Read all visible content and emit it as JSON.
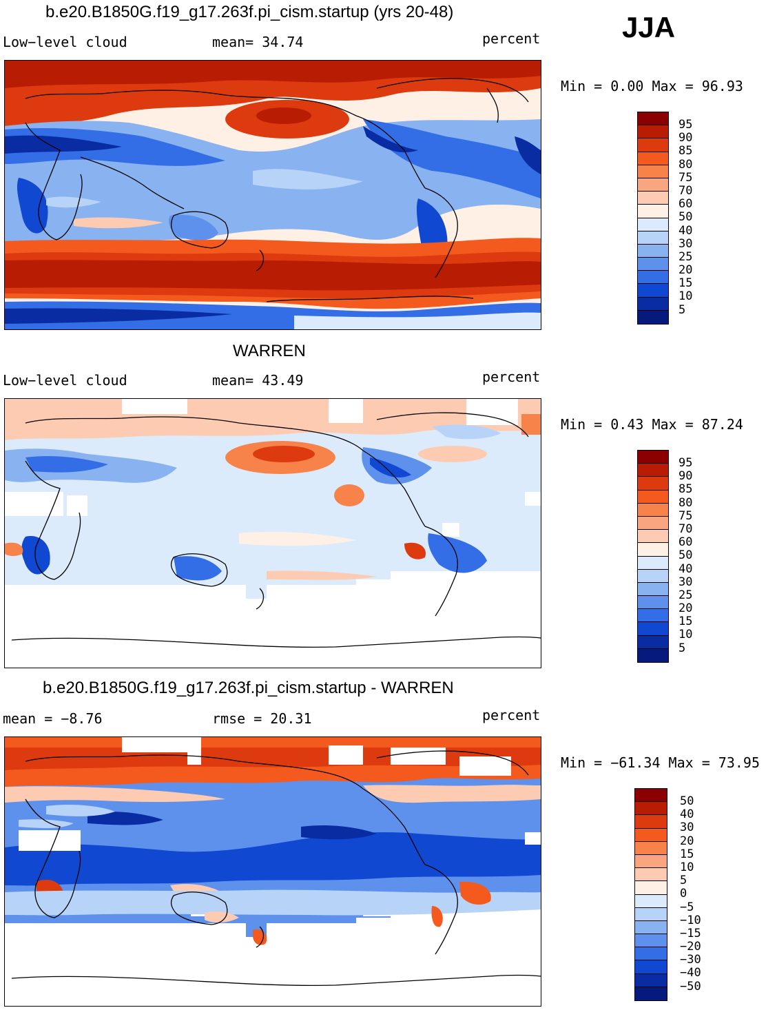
{
  "season": "JJA",
  "panels": [
    {
      "title": "b.e20.B1850G.f19_g17.263f.pi_cism.startup (yrs 20-48)",
      "left_label": "Low−level cloud",
      "mid_label": "mean=  34.74",
      "right_label": "percent",
      "minmax": "Min =    0.00 Max =   96.93"
    },
    {
      "title": "WARREN",
      "left_label": "Low−level cloud",
      "mid_label": "mean=  43.49",
      "right_label": "percent",
      "minmax": "Min =    0.43 Max =   87.24"
    },
    {
      "title": "b.e20.B1850G.f19_g17.263f.pi_cism.startup - WARREN",
      "left_label": "mean =   −8.76",
      "mid_label": "rmse =   20.31",
      "right_label": "percent",
      "minmax": "Min = −61.34 Max =   73.95"
    }
  ],
  "chart_data": [
    {
      "type": "heatmap",
      "title": "b.e20.B1850G.f19_g17.263f.pi_cism.startup (yrs 20-48)",
      "variable": "Low-level cloud",
      "units": "percent",
      "mean": 34.74,
      "min": 0.0,
      "max": 96.93,
      "colorbar_levels": [
        "95",
        "90",
        "85",
        "80",
        "75",
        "70",
        "60",
        "50",
        "40",
        "30",
        "25",
        "20",
        "15",
        "10",
        "5"
      ],
      "colorbar_colors": [
        "#8b0000",
        "#b81d04",
        "#dd3a0f",
        "#f45a1e",
        "#f7834a",
        "#f9a57f",
        "#fdcbb1",
        "#fff0e6",
        "#dcebfc",
        "#b7d3f7",
        "#88b2f0",
        "#5d91ec",
        "#346ee6",
        "#1048d1",
        "#0a2ca3",
        "#061a7d"
      ]
    },
    {
      "type": "heatmap",
      "title": "WARREN",
      "variable": "Low-level cloud",
      "units": "percent",
      "mean": 43.49,
      "min": 0.43,
      "max": 87.24,
      "colorbar_levels": [
        "95",
        "90",
        "85",
        "80",
        "75",
        "70",
        "60",
        "50",
        "40",
        "30",
        "25",
        "20",
        "15",
        "10",
        "5"
      ],
      "colorbar_colors": [
        "#8b0000",
        "#b81d04",
        "#dd3a0f",
        "#f45a1e",
        "#f7834a",
        "#f9a57f",
        "#fdcbb1",
        "#fff0e6",
        "#dcebfc",
        "#b7d3f7",
        "#88b2f0",
        "#5d91ec",
        "#346ee6",
        "#1048d1",
        "#0a2ca3",
        "#061a7d"
      ]
    },
    {
      "type": "heatmap",
      "title": "b.e20.B1850G.f19_g17.263f.pi_cism.startup - WARREN",
      "units": "percent",
      "mean": -8.76,
      "rmse": 20.31,
      "min": -61.34,
      "max": 73.95,
      "colorbar_levels": [
        "50",
        "40",
        "30",
        "20",
        "15",
        "10",
        "5",
        "0",
        "−5",
        "−10",
        "−15",
        "−20",
        "−30",
        "−40",
        "−50"
      ],
      "colorbar_colors": [
        "#8b0000",
        "#b81d04",
        "#dd3a0f",
        "#f45a1e",
        "#f7834a",
        "#f9a57f",
        "#fdcbb1",
        "#fff0e6",
        "#dcebfc",
        "#b7d3f7",
        "#88b2f0",
        "#5d91ec",
        "#346ee6",
        "#1048d1",
        "#0a2ca3",
        "#061a7d"
      ]
    }
  ]
}
